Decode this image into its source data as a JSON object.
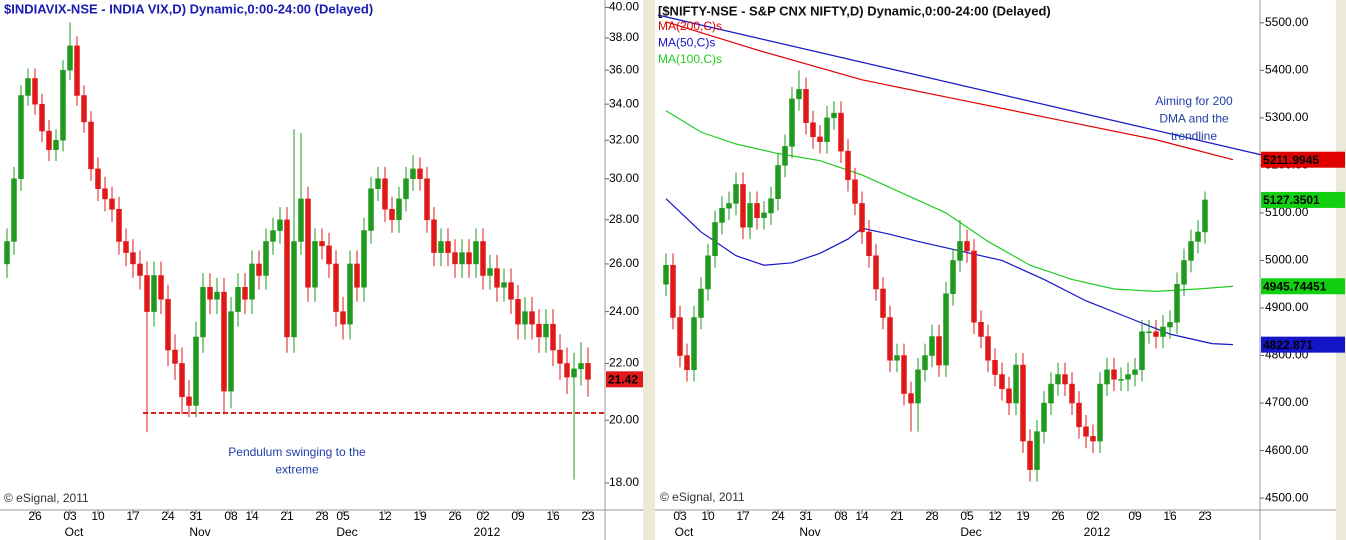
{
  "chart_data": [
    {
      "type": "candlestick",
      "title": "$INDIAVIX-NSE - INDIA VIX,D) Dynamic,0:00-24:00 (Delayed)",
      "categories": [
        null,
        null,
        null,
        null,
        "26",
        null,
        null,
        null,
        null,
        "03",
        null,
        null,
        null,
        "10",
        null,
        null,
        null,
        null,
        "17",
        null,
        null,
        null,
        null,
        "24",
        null,
        null,
        null,
        "31",
        null,
        null,
        null,
        null,
        "08",
        null,
        null,
        "14",
        null,
        null,
        null,
        null,
        "21",
        null,
        null,
        null,
        null,
        "28",
        null,
        null,
        "05",
        null,
        null,
        null,
        null,
        null,
        "12",
        null,
        null,
        null,
        null,
        "19",
        null,
        null,
        null,
        null,
        "26",
        null,
        null,
        null,
        "02",
        null,
        null,
        null,
        null,
        "09",
        null,
        null,
        null,
        null,
        "16",
        null,
        null,
        null,
        null,
        "23"
      ],
      "category_groups": [
        null,
        null,
        null,
        null,
        null,
        null,
        null,
        null,
        null,
        "Oct",
        null,
        null,
        null,
        null,
        null,
        null,
        null,
        null,
        null,
        null,
        null,
        null,
        null,
        null,
        null,
        null,
        null,
        "Nov",
        null,
        null,
        null,
        null,
        null,
        null,
        null,
        null,
        null,
        null,
        null,
        null,
        null,
        null,
        null,
        null,
        null,
        null,
        null,
        null,
        "Dec",
        null,
        null,
        null,
        null,
        null,
        null,
        null,
        null,
        null,
        null,
        null,
        null,
        null,
        null,
        null,
        null,
        null,
        null,
        null,
        "2012",
        null,
        null,
        null,
        null,
        null,
        null,
        null,
        null,
        null,
        null,
        null,
        null,
        null,
        null,
        null
      ],
      "open": [
        26.0,
        27.0,
        30.0,
        34.5,
        35.5,
        34.0,
        32.5,
        31.5,
        32.0,
        36.0,
        37.5,
        34.5,
        33.0,
        30.5,
        29.5,
        29.0,
        28.5,
        27.0,
        26.5,
        26.0,
        25.5,
        24.0,
        25.5,
        24.5,
        22.5,
        22.0,
        20.8,
        20.5,
        23.0,
        25.0,
        24.5,
        24.8,
        21.0,
        24.0,
        25.0,
        24.5,
        26.0,
        25.5,
        27.0,
        27.5,
        28.0,
        23.0,
        27.0,
        29.0,
        25.0,
        27.0,
        26.8,
        26.0,
        24.0,
        23.5,
        26.0,
        25.0,
        27.5,
        29.5,
        30.0,
        28.5,
        28.0,
        29.0,
        30.0,
        30.5,
        30.0,
        28.0,
        26.5,
        27.0,
        26.5,
        26.0,
        26.5,
        26.0,
        27.0,
        25.5,
        25.8,
        25.0,
        25.2,
        24.5,
        23.5,
        24.0,
        23.5,
        23.0,
        23.5,
        22.5,
        22.0,
        21.5,
        21.8,
        22.0
      ],
      "high": [
        27.6,
        30.6,
        35.1,
        36.1,
        36.1,
        34.6,
        33.1,
        32.6,
        36.6,
        39.0,
        38.1,
        35.1,
        33.6,
        31.1,
        30.1,
        29.6,
        29.1,
        27.6,
        27.1,
        26.6,
        26.1,
        26.1,
        26.1,
        25.1,
        23.1,
        22.6,
        21.4,
        23.6,
        25.6,
        25.6,
        25.4,
        25.4,
        24.6,
        25.6,
        25.6,
        26.6,
        26.6,
        27.6,
        28.1,
        28.6,
        28.6,
        32.6,
        32.4,
        29.6,
        27.6,
        27.6,
        27.4,
        26.6,
        24.6,
        26.6,
        26.6,
        28.1,
        30.1,
        30.6,
        30.6,
        29.1,
        29.6,
        30.6,
        31.2,
        31.1,
        30.6,
        28.6,
        27.6,
        27.6,
        27.1,
        27.1,
        27.1,
        27.6,
        27.6,
        26.4,
        26.4,
        25.8,
        25.8,
        25.1,
        24.6,
        24.6,
        24.1,
        24.1,
        24.1,
        23.1,
        22.6,
        22.4,
        22.8,
        22.6
      ],
      "low": [
        25.4,
        26.4,
        29.4,
        33.9,
        33.4,
        31.9,
        30.9,
        30.9,
        31.4,
        35.4,
        33.9,
        32.4,
        29.9,
        28.9,
        28.4,
        27.9,
        26.4,
        25.9,
        25.4,
        24.9,
        19.6,
        23.4,
        23.9,
        21.9,
        21.4,
        20.2,
        20.1,
        20.1,
        22.4,
        23.9,
        23.9,
        20.2,
        20.4,
        23.4,
        23.9,
        23.9,
        24.9,
        24.9,
        26.4,
        26.9,
        22.4,
        22.4,
        26.4,
        24.4,
        24.4,
        26.2,
        25.4,
        23.4,
        22.9,
        22.9,
        24.4,
        24.4,
        26.9,
        28.9,
        27.9,
        27.4,
        27.4,
        28.4,
        29.4,
        29.4,
        27.4,
        25.9,
        25.9,
        25.9,
        25.4,
        25.4,
        25.4,
        25.4,
        24.9,
        24.9,
        24.4,
        24.4,
        23.9,
        22.9,
        22.9,
        22.9,
        22.4,
        22.4,
        21.9,
        21.4,
        20.9,
        18.1,
        21.2,
        20.8
      ],
      "close": [
        27.0,
        30.0,
        34.5,
        35.5,
        34.0,
        32.5,
        31.5,
        32.0,
        36.0,
        37.5,
        34.5,
        33.0,
        30.5,
        29.5,
        29.0,
        28.5,
        27.0,
        26.5,
        26.0,
        25.5,
        24.0,
        25.5,
        24.5,
        22.5,
        22.0,
        20.8,
        20.5,
        23.0,
        25.0,
        24.5,
        24.8,
        21.0,
        24.0,
        25.0,
        24.5,
        26.0,
        25.5,
        27.0,
        27.5,
        28.0,
        23.0,
        27.0,
        29.0,
        25.0,
        27.0,
        26.8,
        26.0,
        24.0,
        23.5,
        26.0,
        25.0,
        27.5,
        29.5,
        30.0,
        28.5,
        28.0,
        29.0,
        30.0,
        30.5,
        30.0,
        28.0,
        26.5,
        27.0,
        26.5,
        26.0,
        26.5,
        26.0,
        27.0,
        25.5,
        25.8,
        25.0,
        25.2,
        24.5,
        23.5,
        24.0,
        23.5,
        23.0,
        23.5,
        22.5,
        22.0,
        21.5,
        21.8,
        22.0,
        21.42
      ],
      "up_color": "#1f9a1f",
      "down_color": "#e01818",
      "log_scale": true,
      "ylim": [
        17.2,
        40.5
      ],
      "yticks": [
        {
          "value": 18,
          "label": "18.00"
        },
        {
          "value": 20,
          "label": "20.00"
        },
        {
          "value": 22,
          "label": "22.00"
        },
        {
          "value": 24,
          "label": "24.00"
        },
        {
          "value": 26,
          "label": "26.00"
        },
        {
          "value": 28,
          "label": "28.00"
        },
        {
          "value": 30,
          "label": "30.00"
        },
        {
          "value": 32,
          "label": "32.00"
        },
        {
          "value": 34,
          "label": "34.00"
        },
        {
          "value": 36,
          "label": "36.00"
        },
        {
          "value": 38,
          "label": "38.00"
        },
        {
          "value": 40,
          "label": "40.00"
        }
      ],
      "price_labels": [
        {
          "value": 21.42,
          "label": "21.42",
          "color": "#e01818"
        }
      ],
      "annotation": [
        "Pendulum swinging to the",
        "extreme"
      ],
      "annotation_color": "#1f3ea8",
      "credit": "© eSignal, 2011"
    },
    {
      "type": "candlestick",
      "title": "[$NIFTY-NSE - S&P CNX NIFTY,D) Dynamic,0:00-24:00 (Delayed)",
      "categories": [
        null,
        null,
        "03",
        null,
        null,
        null,
        "10",
        null,
        null,
        null,
        null,
        "17",
        null,
        null,
        null,
        null,
        "24",
        null,
        null,
        null,
        "31",
        null,
        null,
        null,
        null,
        "08",
        null,
        null,
        "14",
        null,
        null,
        null,
        null,
        "21",
        null,
        null,
        null,
        null,
        "28",
        null,
        null,
        null,
        null,
        "05",
        null,
        null,
        null,
        "12",
        null,
        null,
        null,
        "19",
        null,
        null,
        null,
        null,
        "26",
        null,
        null,
        null,
        null,
        "02",
        null,
        null,
        null,
        null,
        null,
        "09",
        null,
        null,
        null,
        null,
        "16",
        null,
        null,
        null,
        null,
        "23"
      ],
      "category_groups": [
        null,
        null,
        "Oct",
        null,
        null,
        null,
        null,
        null,
        null,
        null,
        null,
        null,
        null,
        null,
        null,
        null,
        null,
        null,
        null,
        null,
        "Nov",
        null,
        null,
        null,
        null,
        null,
        null,
        null,
        null,
        null,
        null,
        null,
        null,
        null,
        null,
        null,
        null,
        null,
        null,
        null,
        null,
        null,
        null,
        "Dec",
        null,
        null,
        null,
        null,
        null,
        null,
        null,
        null,
        null,
        null,
        null,
        null,
        null,
        null,
        null,
        null,
        null,
        "2012",
        null,
        null,
        null,
        null,
        null,
        null,
        null,
        null,
        null,
        null,
        null,
        null,
        null,
        null,
        null,
        null
      ],
      "open": [
        4950,
        4990,
        4880,
        4800,
        4770,
        4880,
        4940,
        5010,
        5080,
        5110,
        5120,
        5160,
        5070,
        5120,
        5090,
        5100,
        5130,
        5200,
        5240,
        5340,
        5360,
        5290,
        5260,
        5250,
        5300,
        5310,
        5230,
        5170,
        5120,
        5060,
        5010,
        4940,
        4880,
        4790,
        4800,
        4720,
        4700,
        4770,
        4800,
        4840,
        4780,
        4930,
        5000,
        5040,
        5020,
        4870,
        4840,
        4790,
        4760,
        4730,
        4700,
        4780,
        4620,
        4560,
        4640,
        4700,
        4740,
        4760,
        4740,
        4700,
        4650,
        4630,
        4620,
        4740,
        4770,
        4750,
        4750,
        4760,
        4770,
        4850,
        4850,
        4840,
        4860,
        4870,
        4950,
        5000,
        5040,
        5060
      ],
      "high": [
        5015,
        5015,
        4905,
        4825,
        4905,
        4965,
        5035,
        5105,
        5135,
        5145,
        5185,
        5185,
        5145,
        5145,
        5125,
        5155,
        5225,
        5265,
        5365,
        5400,
        5385,
        5315,
        5285,
        5325,
        5335,
        5335,
        5255,
        5195,
        5145,
        5085,
        5035,
        4965,
        4905,
        4825,
        4825,
        4745,
        4795,
        4825,
        4865,
        4865,
        4955,
        5025,
        5085,
        5065,
        5045,
        4895,
        4865,
        4815,
        4785,
        4755,
        4805,
        4805,
        4645,
        4665,
        4725,
        4765,
        4785,
        4785,
        4765,
        4725,
        4675,
        4655,
        4765,
        4795,
        4795,
        4775,
        4785,
        4795,
        4875,
        4875,
        4875,
        4885,
        4895,
        4975,
        5025,
        5065,
        5085,
        5145
      ],
      "low": [
        4925,
        4855,
        4775,
        4745,
        4745,
        4855,
        4915,
        4985,
        5055,
        5085,
        5095,
        5045,
        5045,
        5065,
        5065,
        5075,
        5105,
        5175,
        5215,
        5315,
        5265,
        5235,
        5225,
        5225,
        5275,
        5205,
        5145,
        5095,
        5035,
        4985,
        4915,
        4855,
        4765,
        4765,
        4695,
        4640,
        4640,
        4745,
        4775,
        4755,
        4755,
        4905,
        4975,
        4995,
        4845,
        4815,
        4765,
        4735,
        4705,
        4675,
        4675,
        4595,
        4535,
        4535,
        4615,
        4675,
        4715,
        4715,
        4675,
        4625,
        4605,
        4595,
        4595,
        4715,
        4725,
        4725,
        4725,
        4735,
        4745,
        4825,
        4815,
        4815,
        4835,
        4845,
        4925,
        4975,
        5015,
        5035
      ],
      "close": [
        4990,
        4880,
        4800,
        4770,
        4880,
        4940,
        5010,
        5080,
        5110,
        5120,
        5160,
        5070,
        5120,
        5090,
        5100,
        5130,
        5200,
        5240,
        5340,
        5360,
        5290,
        5260,
        5250,
        5300,
        5310,
        5230,
        5170,
        5120,
        5060,
        5010,
        4940,
        4880,
        4790,
        4800,
        4720,
        4700,
        4770,
        4800,
        4840,
        4780,
        4930,
        5000,
        5040,
        5020,
        4870,
        4840,
        4790,
        4760,
        4730,
        4700,
        4780,
        4620,
        4560,
        4640,
        4700,
        4740,
        4760,
        4740,
        4700,
        4650,
        4630,
        4620,
        4740,
        4770,
        4750,
        4750,
        4760,
        4770,
        4850,
        4850,
        4840,
        4860,
        4870,
        4950,
        5000,
        5040,
        5060,
        5127.35
      ],
      "up_color": "#1f9a1f",
      "down_color": "#e01818",
      "log_scale": false,
      "ylim": [
        4475,
        5548
      ],
      "yticks": [
        {
          "value": 4500,
          "label": "4500.00"
        },
        {
          "value": 4600,
          "label": "4600.00"
        },
        {
          "value": 4700,
          "label": "4700.00"
        },
        {
          "value": 4800,
          "label": "4800.00"
        },
        {
          "value": 4900,
          "label": "4900.00"
        },
        {
          "value": 5000,
          "label": "5000.00"
        },
        {
          "value": 5100,
          "label": "5100.00"
        },
        {
          "value": 5200,
          "label": "5200.00"
        },
        {
          "value": 5300,
          "label": "5300.00"
        },
        {
          "value": 5400,
          "label": "5400.00"
        },
        {
          "value": 5500,
          "label": "5500.00"
        }
      ],
      "series": [
        {
          "name": "MA(200,C)s",
          "color": "#e00000",
          "x": [
            0,
            13,
            28,
            42,
            56,
            70,
            81
          ],
          "values": [
            5502,
            5443,
            5380,
            5338,
            5296,
            5254,
            5212
          ]
        },
        {
          "name": "MA(50,C)s",
          "color": "#1414c8",
          "x": [
            0,
            5,
            10,
            14,
            18,
            22,
            26,
            28,
            32,
            36,
            42,
            48,
            54,
            60,
            66,
            72,
            78,
            81
          ],
          "values": [
            5130,
            5060,
            5010,
            4990,
            4995,
            5015,
            5045,
            5068,
            5055,
            5040,
            5020,
            5000,
            4960,
            4915,
            4880,
            4845,
            4825,
            4822.87
          ]
        },
        {
          "name": "MA(100,C)s",
          "color": "#22cc22",
          "x": [
            0,
            5,
            10,
            16,
            22,
            28,
            34,
            40,
            46,
            52,
            58,
            64,
            70,
            76,
            81
          ],
          "values": [
            5315,
            5270,
            5245,
            5225,
            5210,
            5180,
            5140,
            5100,
            5040,
            4990,
            4960,
            4940,
            4935,
            4940,
            4945.74
          ]
        }
      ],
      "price_labels": [
        {
          "value": 5211.9945,
          "label": "5211.9945",
          "color": "#e00000"
        },
        {
          "value": 5127.3501,
          "label": "5127.3501",
          "color": "#10d010"
        },
        {
          "value": 4945.74451,
          "label": "4945.74451",
          "color": "#10d010"
        },
        {
          "value": 4822.871,
          "label": "4822.871",
          "color": "#1414c8"
        }
      ],
      "annotation": [
        "Aiming for 200",
        "DMA and the",
        "trendline"
      ],
      "annotation_color": "#1f3ea8",
      "credit": "© eSignal, 2011"
    }
  ]
}
